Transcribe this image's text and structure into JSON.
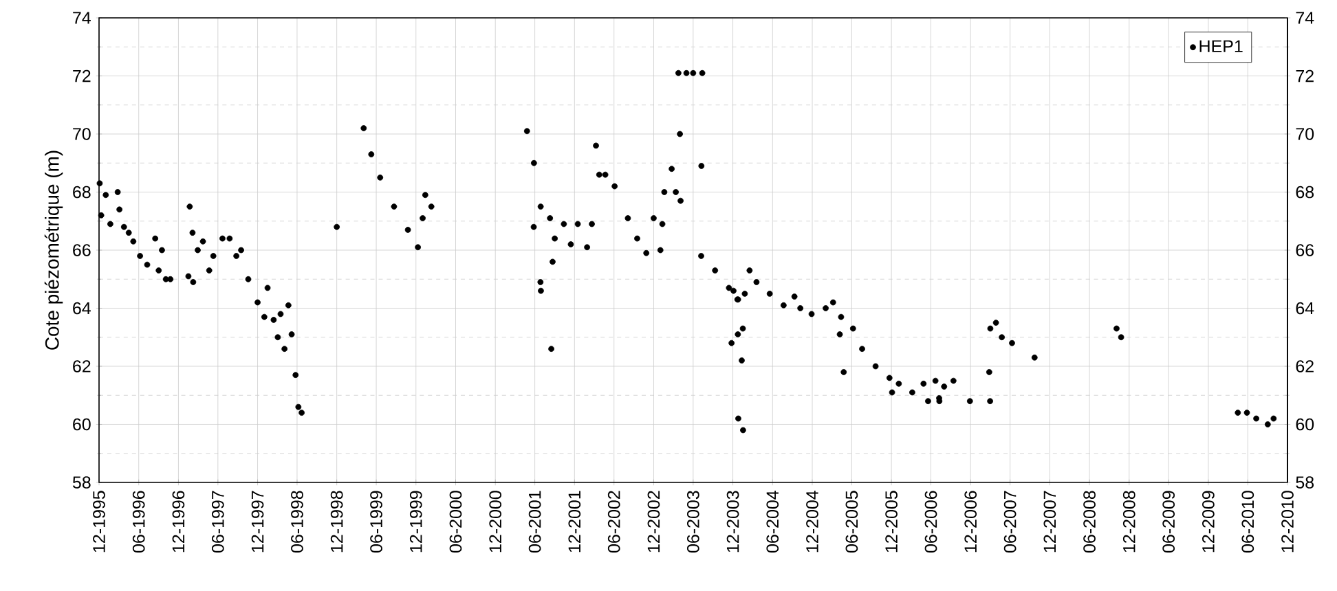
{
  "chart_data": {
    "type": "scatter",
    "ylabel": "Cote piézométrique (m)",
    "xlim": [
      "1995-12",
      "2010-12"
    ],
    "ylim": [
      58,
      74
    ],
    "y2lim": [
      58,
      74
    ],
    "xticks": [
      {
        "value": "1995-12",
        "label": "12-1995"
      },
      {
        "value": "1996-06",
        "label": "06-1996"
      },
      {
        "value": "1996-12",
        "label": "12-1996"
      },
      {
        "value": "1997-06",
        "label": "06-1997"
      },
      {
        "value": "1997-12",
        "label": "12-1997"
      },
      {
        "value": "1998-06",
        "label": "06-1998"
      },
      {
        "value": "1998-12",
        "label": "12-1998"
      },
      {
        "value": "1999-06",
        "label": "06-1999"
      },
      {
        "value": "1999-12",
        "label": "12-1999"
      },
      {
        "value": "2000-06",
        "label": "06-2000"
      },
      {
        "value": "2000-12",
        "label": "12-2000"
      },
      {
        "value": "2001-06",
        "label": "06-2001"
      },
      {
        "value": "2001-12",
        "label": "12-2001"
      },
      {
        "value": "2002-06",
        "label": "06-2002"
      },
      {
        "value": "2002-12",
        "label": "12-2002"
      },
      {
        "value": "2003-06",
        "label": "06-2003"
      },
      {
        "value": "2003-12",
        "label": "12-2003"
      },
      {
        "value": "2004-06",
        "label": "06-2004"
      },
      {
        "value": "2004-12",
        "label": "12-2004"
      },
      {
        "value": "2005-06",
        "label": "06-2005"
      },
      {
        "value": "2005-12",
        "label": "12-2005"
      },
      {
        "value": "2006-06",
        "label": "06-2006"
      },
      {
        "value": "2006-12",
        "label": "12-2006"
      },
      {
        "value": "2007-06",
        "label": "06-2007"
      },
      {
        "value": "2007-12",
        "label": "12-2007"
      },
      {
        "value": "2008-06",
        "label": "06-2008"
      },
      {
        "value": "2008-12",
        "label": "12-2008"
      },
      {
        "value": "2009-06",
        "label": "06-2009"
      },
      {
        "value": "2009-12",
        "label": "12-2009"
      },
      {
        "value": "2010-06",
        "label": "06-2010"
      },
      {
        "value": "2010-12",
        "label": "12-2010"
      }
    ],
    "yticks": [
      58,
      60,
      62,
      64,
      66,
      68,
      70,
      72,
      74
    ],
    "y2ticks": [
      58,
      60,
      62,
      64,
      66,
      68,
      70,
      72,
      74
    ],
    "grid": true,
    "legend": "top right",
    "marker": "circle",
    "series": [
      {
        "name": "HEP1",
        "color": "#000000",
        "x": [
          "1995-12-04",
          "1995-12-11",
          "1996-01-01",
          "1996-01-22",
          "1996-02-25",
          "1996-03-04",
          "1996-03-25",
          "1996-04-16",
          "1996-05-07",
          "1996-06-07",
          "1996-07-10",
          "1996-08-16",
          "1996-09-01",
          "1996-09-16",
          "1996-10-04",
          "1996-10-25",
          "1997-01-16",
          "1997-01-22",
          "1997-02-04",
          "1997-02-07",
          "1997-02-28",
          "1997-03-24",
          "1997-04-22",
          "1997-05-11",
          "1997-06-22",
          "1997-07-25",
          "1997-08-25",
          "1997-09-16",
          "1997-10-19",
          "1997-12-01",
          "1998-01-01",
          "1998-01-16",
          "1998-02-13",
          "1998-03-04",
          "1998-03-17",
          "1998-04-04",
          "1998-04-22",
          "1998-05-07",
          "1998-05-25",
          "1998-06-07",
          "1998-06-22",
          "1998-12-01",
          "1999-04-04",
          "1999-05-09",
          "1999-06-19",
          "1999-08-22",
          "1999-10-25",
          "1999-12-10",
          "2000-01-01",
          "2000-01-13",
          "2000-02-10",
          "2001-04-26",
          "2001-05-27",
          "2001-05-28",
          "2001-06-27",
          "2001-06-28",
          "2001-06-29",
          "2001-08-10",
          "2001-08-16",
          "2001-08-22",
          "2001-09-01",
          "2001-10-13",
          "2001-11-14",
          "2001-12-16",
          "2002-01-28",
          "2002-02-19",
          "2002-03-10",
          "2002-03-25",
          "2002-04-22",
          "2002-06-04",
          "2002-08-04",
          "2002-09-16",
          "2002-10-28",
          "2002-12-01",
          "2003-01-01",
          "2003-01-10",
          "2003-01-19",
          "2003-02-22",
          "2003-03-13",
          "2003-03-25",
          "2003-04-01",
          "2003-04-04",
          "2003-05-01",
          "2003-06-01",
          "2003-07-08",
          "2003-07-09",
          "2003-07-13",
          "2003-09-10",
          "2003-11-13",
          "2003-11-25",
          "2003-12-04",
          "2003-12-22",
          "2003-12-24",
          "2003-12-25",
          "2003-12-26",
          "2004-01-11",
          "2004-01-16",
          "2004-01-17",
          "2004-01-25",
          "2004-02-16",
          "2004-03-19",
          "2004-05-19",
          "2004-07-22",
          "2004-09-10",
          "2004-10-07",
          "2004-11-28",
          "2005-02-01",
          "2005-03-07",
          "2005-04-07",
          "2005-04-13",
          "2005-04-25",
          "2005-06-07",
          "2005-07-19",
          "2005-09-19",
          "2005-11-22",
          "2005-12-04",
          "2006-01-04",
          "2006-03-07",
          "2006-04-28",
          "2006-05-19",
          "2006-06-22",
          "2006-07-09",
          "2006-07-10",
          "2006-08-01",
          "2006-09-13",
          "2006-11-28",
          "2007-02-25",
          "2007-03-01",
          "2007-03-02",
          "2007-03-28",
          "2007-04-24",
          "2007-06-10",
          "2007-09-22",
          "2008-10-04",
          "2008-10-25",
          "2010-04-16",
          "2010-05-28",
          "2010-07-10",
          "2010-09-01",
          "2010-09-28"
        ],
        "values": [
          68.3,
          67.2,
          67.9,
          66.9,
          68.0,
          67.4,
          66.8,
          66.6,
          66.3,
          65.8,
          65.5,
          66.4,
          65.3,
          66.0,
          65.0,
          65.0,
          65.1,
          67.5,
          66.6,
          64.9,
          66.0,
          66.3,
          65.3,
          65.8,
          66.4,
          66.4,
          65.8,
          66.0,
          65.0,
          64.2,
          63.7,
          64.7,
          63.6,
          63.0,
          63.8,
          62.6,
          64.1,
          63.1,
          61.7,
          60.6,
          60.4,
          66.8,
          70.2,
          69.3,
          68.5,
          67.5,
          66.7,
          66.1,
          67.1,
          67.9,
          67.5,
          70.1,
          66.8,
          69.0,
          64.9,
          67.5,
          64.6,
          67.1,
          62.6,
          65.6,
          66.4,
          66.9,
          66.2,
          66.9,
          66.1,
          66.9,
          69.6,
          68.6,
          68.6,
          68.2,
          67.1,
          66.4,
          65.9,
          67.1,
          66.0,
          66.9,
          68.0,
          68.8,
          68.0,
          72.1,
          70.0,
          67.7,
          72.1,
          72.1,
          65.8,
          68.9,
          72.1,
          65.3,
          64.7,
          62.8,
          64.6,
          64.3,
          63.1,
          64.3,
          60.2,
          62.2,
          63.3,
          59.8,
          64.5,
          65.3,
          64.9,
          64.5,
          64.1,
          64.4,
          64.0,
          63.8,
          64.0,
          64.2,
          63.1,
          63.7,
          61.8,
          63.3,
          62.6,
          62.0,
          61.6,
          61.1,
          61.4,
          61.1,
          61.4,
          60.8,
          61.5,
          60.9,
          60.8,
          61.3,
          61.5,
          60.8,
          61.8,
          60.8,
          63.3,
          63.5,
          63.0,
          62.8,
          62.3,
          63.3,
          63.0,
          60.4,
          60.4,
          60.2,
          60.0,
          60.2
        ]
      }
    ]
  }
}
